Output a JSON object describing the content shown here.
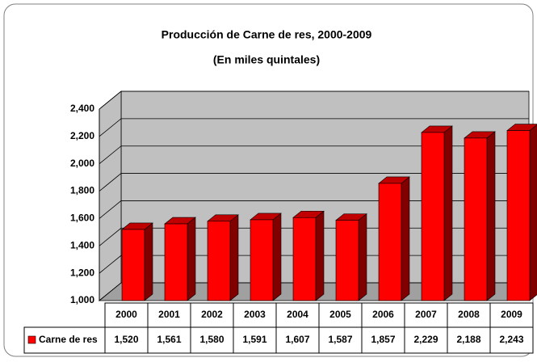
{
  "chart_data": {
    "type": "bar3d",
    "title": "Producción de  Carne de res, 2000-2009",
    "subtitle": "(En miles quintales)",
    "categories": [
      "2000",
      "2001",
      "2002",
      "2003",
      "2004",
      "2005",
      "2006",
      "2007",
      "2008",
      "2009"
    ],
    "series": [
      {
        "name": "Carne de res",
        "color": "#ff0000",
        "values": [
          1520,
          1561,
          1580,
          1591,
          1607,
          1587,
          1857,
          2229,
          2188,
          2243
        ],
        "value_labels": [
          "1,520",
          "1,561",
          "1,580",
          "1,591",
          "1,607",
          "1,587",
          "1,857",
          "2,229",
          "2,188",
          "2,243"
        ]
      }
    ],
    "ylim": [
      1000,
      2400
    ],
    "yticks": [
      {
        "value": 1000,
        "label": "1,000"
      },
      {
        "value": 1200,
        "label": "1,200"
      },
      {
        "value": 1400,
        "label": "1,400"
      },
      {
        "value": 1600,
        "label": "1,600"
      },
      {
        "value": 1800,
        "label": "1,800"
      },
      {
        "value": 2000,
        "label": "2,000"
      },
      {
        "value": 2200,
        "label": "2,200"
      },
      {
        "value": 2400,
        "label": "2,400"
      }
    ],
    "grid": true
  }
}
